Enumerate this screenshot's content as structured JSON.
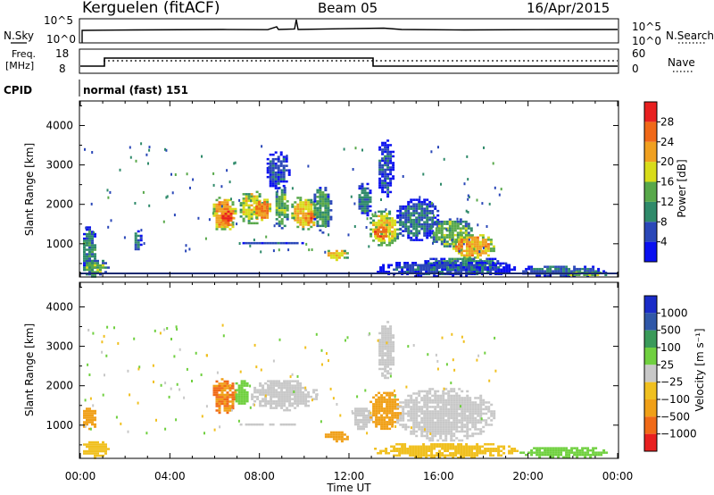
{
  "header": {
    "station": "Kerguelen (fitACF)",
    "beam": "Beam 05",
    "date": "16/Apr/2015"
  },
  "panels": {
    "nsky": {
      "left_label": "N.Sky",
      "left_ticks": [
        "10^5",
        "10^0"
      ],
      "right_ticks": [
        "10^5",
        "10^0"
      ],
      "right_label": "N.Search"
    },
    "freq": {
      "left_label_line1": "Freq.",
      "left_label_line2": "[MHz]",
      "left_ticks": [
        "18",
        "8"
      ],
      "right_ticks": [
        "60",
        "0"
      ],
      "right_label": "Nave"
    },
    "cpid": {
      "label": "CPID",
      "value": "normal (fast) 151"
    }
  },
  "chart_data": [
    {
      "type": "heatmap",
      "name": "power",
      "ylabel": "Slant Range [km]",
      "xlabel": "Time UT",
      "ylim": [
        180,
        4600
      ],
      "y_ticks": [
        1000,
        2000,
        3000,
        4000
      ],
      "x_ticks": [
        "00:00",
        "04:00",
        "08:00",
        "12:00",
        "16:00",
        "20:00",
        "00:00"
      ],
      "xlim_hours": [
        0,
        24
      ],
      "colorbar": {
        "label": "Power [dB]",
        "ticks": [
          "4",
          "8",
          "12",
          "16",
          "20",
          "24",
          "28"
        ],
        "colors": [
          "#0a10f0",
          "#2a47b8",
          "#2f8a6a",
          "#58a84a",
          "#d8dc1a",
          "#f0a020",
          "#f06818",
          "#e82020"
        ]
      },
      "regions": [
        {
          "t": [
            0.0,
            0.7
          ],
          "r": [
            180,
            1500
          ],
          "value": 10
        },
        {
          "t": [
            0.0,
            1.2
          ],
          "r": [
            180,
            650
          ],
          "value": 14
        },
        {
          "t": [
            2.3,
            2.7
          ],
          "r": [
            800,
            1400
          ],
          "value": 10
        },
        {
          "t": [
            5.8,
            6.9
          ],
          "r": [
            1300,
            2250
          ],
          "value": 22
        },
        {
          "t": [
            6.2,
            6.8
          ],
          "r": [
            1450,
            1900
          ],
          "value": 28
        },
        {
          "t": [
            7.0,
            8.2
          ],
          "r": [
            1500,
            2400
          ],
          "value": 18
        },
        {
          "t": [
            7.7,
            8.5
          ],
          "r": [
            1600,
            2200
          ],
          "value": 24
        },
        {
          "t": [
            8.6,
            9.3
          ],
          "r": [
            1400,
            2500
          ],
          "value": 14
        },
        {
          "t": [
            9.3,
            10.6
          ],
          "r": [
            1350,
            2250
          ],
          "value": 20
        },
        {
          "t": [
            9.9,
            10.5
          ],
          "r": [
            1450,
            1900
          ],
          "value": 26
        },
        {
          "t": [
            10.3,
            11.2
          ],
          "r": [
            1300,
            2500
          ],
          "value": 12
        },
        {
          "t": [
            7.0,
            10.0
          ],
          "r": [
            1000,
            1100
          ],
          "value": 6
        },
        {
          "t": [
            8.2,
            9.3
          ],
          "r": [
            2400,
            3400
          ],
          "value": 6
        },
        {
          "t": [
            10.8,
            12.0
          ],
          "r": [
            600,
            900
          ],
          "value": 20
        },
        {
          "t": [
            12.3,
            13.0
          ],
          "r": [
            1700,
            2600
          ],
          "value": 8
        },
        {
          "t": [
            12.8,
            14.3
          ],
          "r": [
            950,
            1900
          ],
          "value": 18
        },
        {
          "t": [
            13.0,
            13.8
          ],
          "r": [
            1100,
            1500
          ],
          "value": 26
        },
        {
          "t": [
            13.2,
            14.0
          ],
          "r": [
            2200,
            3700
          ],
          "value": 6
        },
        {
          "t": [
            14.0,
            16.0
          ],
          "r": [
            1100,
            2200
          ],
          "value": 8
        },
        {
          "t": [
            15.5,
            17.5
          ],
          "r": [
            900,
            1700
          ],
          "value": 14
        },
        {
          "t": [
            16.5,
            18.5
          ],
          "r": [
            600,
            1300
          ],
          "value": 22
        },
        {
          "t": [
            15.0,
            19.0
          ],
          "r": [
            350,
            700
          ],
          "value": 10
        },
        {
          "t": [
            13.0,
            19.5
          ],
          "r": [
            180,
            600
          ],
          "value": 6
        },
        {
          "t": [
            19.5,
            23.5
          ],
          "r": [
            180,
            500
          ],
          "value": 8
        },
        {
          "t": [
            21.5,
            23.5
          ],
          "r": [
            180,
            350
          ],
          "value": 14
        }
      ]
    },
    {
      "type": "heatmap",
      "name": "velocity",
      "ylabel": "Slant Range [km]",
      "xlabel": "Time UT",
      "ylim": [
        180,
        4600
      ],
      "y_ticks": [
        1000,
        2000,
        3000,
        4000
      ],
      "x_ticks": [
        "00:00",
        "04:00",
        "08:00",
        "12:00",
        "16:00",
        "20:00",
        "00:00"
      ],
      "xlim_hours": [
        0,
        24
      ],
      "colorbar": {
        "label": "Velocity [m s⁻¹]",
        "ticks": [
          "1000",
          "500",
          "100",
          "25",
          "−25",
          "−100",
          "−500",
          "−1000"
        ],
        "colors": [
          "#1a2cc8",
          "#3058a8",
          "#3a9a5a",
          "#70d040",
          "#c8c8c8",
          "#f0c020",
          "#f0a018",
          "#f06a18",
          "#e82020"
        ]
      },
      "regions": [
        {
          "t": [
            0.0,
            0.7
          ],
          "r": [
            900,
            1500
          ],
          "value": -400
        },
        {
          "t": [
            0.0,
            1.2
          ],
          "r": [
            180,
            650
          ],
          "value": -60
        },
        {
          "t": [
            5.8,
            6.9
          ],
          "r": [
            1300,
            2250
          ],
          "value": -500
        },
        {
          "t": [
            6.8,
            7.5
          ],
          "r": [
            1500,
            2200
          ],
          "value": 60
        },
        {
          "t": [
            7.5,
            10.6
          ],
          "r": [
            1400,
            2200
          ],
          "value": 0
        },
        {
          "t": [
            7.0,
            10.0
          ],
          "r": [
            1000,
            1100
          ],
          "value": 0
        },
        {
          "t": [
            10.8,
            12.0
          ],
          "r": [
            600,
            900
          ],
          "value": -300
        },
        {
          "t": [
            12.0,
            13.0
          ],
          "r": [
            900,
            1500
          ],
          "value": 0
        },
        {
          "t": [
            12.8,
            14.3
          ],
          "r": [
            900,
            1900
          ],
          "value": -300
        },
        {
          "t": [
            14.0,
            18.5
          ],
          "r": [
            600,
            2000
          ],
          "value": 0
        },
        {
          "t": [
            13.2,
            14.0
          ],
          "r": [
            2200,
            3700
          ],
          "value": 0
        },
        {
          "t": [
            13.0,
            19.5
          ],
          "r": [
            180,
            600
          ],
          "value": -60
        },
        {
          "t": [
            19.5,
            23.5
          ],
          "r": [
            180,
            500
          ],
          "value": 60
        }
      ]
    }
  ]
}
